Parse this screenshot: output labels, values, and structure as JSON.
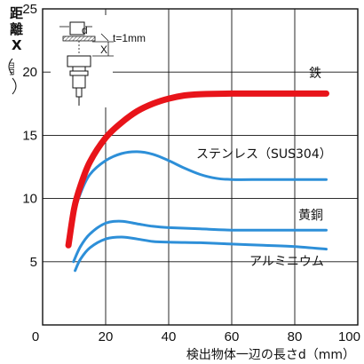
{
  "chart_data": {
    "type": "line",
    "xlabel": "検出物体一辺の長さd（mm）",
    "ylabel_chars": [
      "距",
      "離",
      "X"
    ],
    "ylabel_unit": "mm",
    "xlim": [
      0,
      100
    ],
    "ylim": [
      0,
      25
    ],
    "x_ticks": [
      "0",
      "20",
      "40",
      "60",
      "80",
      "100"
    ],
    "y_ticks": [
      "5",
      "10",
      "15",
      "20",
      "25"
    ],
    "grid": true,
    "inset": {
      "d_label": "d",
      "x_label": "X",
      "t_label": "t=1mm"
    },
    "colors": {
      "iron": "#e8141a",
      "other": "#2d8fd8"
    },
    "series": [
      {
        "name": "鉄",
        "key": "iron",
        "points": [
          [
            8.2,
            6.3
          ],
          [
            10,
            9.2
          ],
          [
            12,
            11.0
          ],
          [
            15,
            12.9
          ],
          [
            20,
            14.8
          ],
          [
            25,
            16.0
          ],
          [
            30,
            16.9
          ],
          [
            35,
            17.5
          ],
          [
            40,
            17.9
          ],
          [
            45,
            18.15
          ],
          [
            50,
            18.25
          ],
          [
            60,
            18.3
          ],
          [
            70,
            18.3
          ],
          [
            80,
            18.3
          ],
          [
            90,
            18.3
          ]
        ]
      },
      {
        "name": "ステンレス（SUS304）",
        "key": "other",
        "points": [
          [
            8.2,
            6.3
          ],
          [
            10,
            8.8
          ],
          [
            12,
            10.4
          ],
          [
            15,
            11.9
          ],
          [
            20,
            13.0
          ],
          [
            25,
            13.55
          ],
          [
            30,
            13.7
          ],
          [
            35,
            13.5
          ],
          [
            40,
            13.0
          ],
          [
            45,
            12.4
          ],
          [
            50,
            11.9
          ],
          [
            55,
            11.6
          ],
          [
            60,
            11.5
          ],
          [
            70,
            11.5
          ],
          [
            80,
            11.5
          ],
          [
            90,
            11.5
          ]
        ]
      },
      {
        "name": "黄銅",
        "key": "other",
        "points": [
          [
            9.8,
            5.0
          ],
          [
            12,
            6.2
          ],
          [
            15,
            7.2
          ],
          [
            20,
            8.05
          ],
          [
            25,
            8.2
          ],
          [
            30,
            8.0
          ],
          [
            35,
            7.8
          ],
          [
            40,
            7.7
          ],
          [
            50,
            7.6
          ],
          [
            60,
            7.5
          ],
          [
            70,
            7.5
          ],
          [
            80,
            7.5
          ],
          [
            90,
            7.5
          ]
        ]
      },
      {
        "name": "アルミニウム",
        "key": "other",
        "points": [
          [
            10.3,
            4.3
          ],
          [
            12,
            5.2
          ],
          [
            15,
            6.1
          ],
          [
            20,
            6.8
          ],
          [
            25,
            6.95
          ],
          [
            30,
            6.8
          ],
          [
            35,
            6.6
          ],
          [
            40,
            6.55
          ],
          [
            50,
            6.5
          ],
          [
            60,
            6.4
          ],
          [
            70,
            6.3
          ],
          [
            80,
            6.2
          ],
          [
            90,
            6.0
          ]
        ]
      }
    ]
  }
}
